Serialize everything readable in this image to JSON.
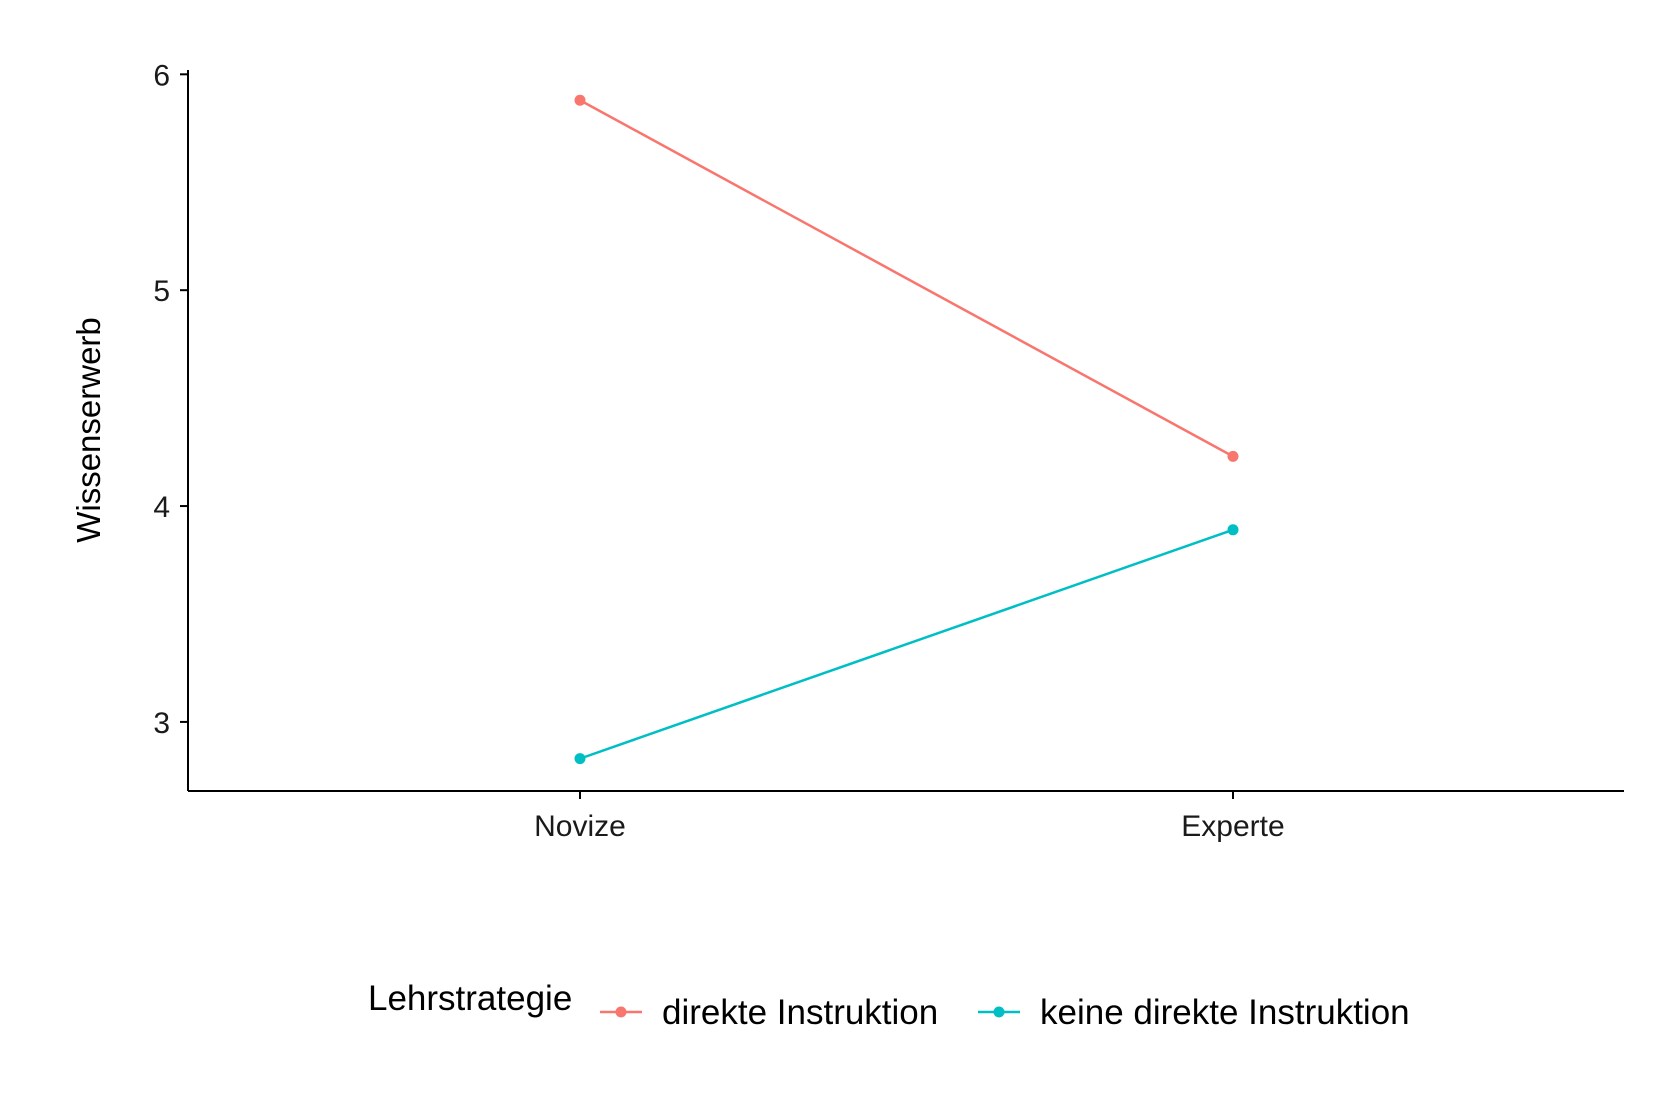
{
  "chart_data": {
    "type": "line",
    "categories": [
      "Novize",
      "Experte"
    ],
    "series": [
      {
        "name": "direkte Instruktion",
        "values": [
          5.88,
          4.23
        ],
        "color": "#F8766D"
      },
      {
        "name": "keine direkte Instruktion",
        "values": [
          2.83,
          3.89
        ],
        "color": "#00BFC4"
      }
    ],
    "xlabel": "",
    "ylabel": "Wissenserwerb",
    "ylim": [
      2.68,
      6.02
    ],
    "yticks": [
      3,
      4,
      5,
      6
    ],
    "legend_title": "Lehrstrategie",
    "legend_position": "bottom",
    "grid": false
  }
}
